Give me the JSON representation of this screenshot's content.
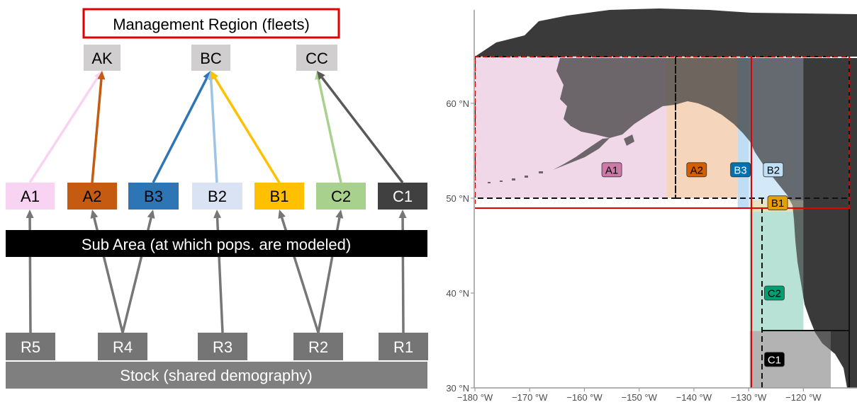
{
  "diagram": {
    "management_title": "Management Region (fleets)",
    "regions": [
      {
        "id": "AK",
        "label": "AK"
      },
      {
        "id": "BC",
        "label": "BC"
      },
      {
        "id": "CC",
        "label": "CC"
      }
    ],
    "subareas": [
      {
        "id": "A1",
        "label": "A1",
        "fill": "#f9d3f2",
        "text": "#000000",
        "region": "AK",
        "arrow": "#f9d3f2"
      },
      {
        "id": "A2",
        "label": "A2",
        "fill": "#c55a11",
        "text": "#000000",
        "region": "AK",
        "arrow": "#c55a11"
      },
      {
        "id": "B3",
        "label": "B3",
        "fill": "#2e75b6",
        "text": "#000000",
        "region": "BC",
        "arrow": "#2e75b6"
      },
      {
        "id": "B2",
        "label": "B2",
        "fill": "#dae3f3",
        "text": "#000000",
        "region": "BC",
        "arrow": "#9dc3e6"
      },
      {
        "id": "B1",
        "label": "B1",
        "fill": "#ffc000",
        "text": "#000000",
        "region": "BC",
        "arrow": "#ffc000"
      },
      {
        "id": "C2",
        "label": "C2",
        "fill": "#a9d18e",
        "text": "#000000",
        "region": "CC",
        "arrow": "#a9d18e"
      },
      {
        "id": "C1",
        "label": "C1",
        "fill": "#404040",
        "text": "#ffffff",
        "region": "CC",
        "arrow": "#595959"
      }
    ],
    "subarea_bar": "Sub Area (at which pops. are modeled)",
    "stocks": [
      {
        "id": "R5",
        "label": "R5",
        "feeds": [
          "A1"
        ]
      },
      {
        "id": "R4",
        "label": "R4",
        "feeds": [
          "A2",
          "B3"
        ]
      },
      {
        "id": "R3",
        "label": "R3",
        "feeds": [
          "B2"
        ]
      },
      {
        "id": "R2",
        "label": "R2",
        "feeds": [
          "B1",
          "C2"
        ]
      },
      {
        "id": "R1",
        "label": "R1",
        "feeds": [
          "C1"
        ]
      }
    ],
    "stock_bar": "Stock (shared demography)",
    "colors": {
      "region_box": "#d0cece",
      "title_border": "#e00000",
      "stock_box": "#757575",
      "stock_arrow": "#767676",
      "bar": "#000000"
    }
  },
  "map": {
    "x_ticks": [
      {
        "value": -180,
        "label": "−180 °W"
      },
      {
        "value": -170,
        "label": "−170 °W"
      },
      {
        "value": -160,
        "label": "−160 °W"
      },
      {
        "value": -150,
        "label": "−150 °W"
      },
      {
        "value": -140,
        "label": "−140 °W"
      },
      {
        "value": -130,
        "label": "−130 °W"
      },
      {
        "value": -120,
        "label": "−120 °W"
      }
    ],
    "y_ticks": [
      {
        "value": 30,
        "label": "30 °N"
      },
      {
        "value": 40,
        "label": "40 °N"
      },
      {
        "value": 50,
        "label": "50 °N"
      },
      {
        "value": 60,
        "label": "60 °N"
      }
    ],
    "lon_range": [
      -180,
      -115
    ],
    "lat_range": [
      30,
      70
    ],
    "areas": [
      {
        "id": "A1",
        "label": "A1",
        "lon": [
          -180,
          -145
        ],
        "lat": [
          50,
          65
        ],
        "fill": "#f1d9e9",
        "label_fill": "#cc79a7",
        "label_text": "#000000",
        "label_pos": [
          -155,
          53
        ]
      },
      {
        "id": "A2",
        "label": "A2",
        "lon": [
          -145,
          -132
        ],
        "lat": [
          50,
          65
        ],
        "fill": "#f5d6bd",
        "label_fill": "#d55e00",
        "label_text": "#000000",
        "label_pos": [
          -139.5,
          53
        ]
      },
      {
        "id": "B3",
        "label": "B3",
        "lon": [
          -132,
          -130
        ],
        "lat": [
          49,
          65
        ],
        "fill": "#bfdef4",
        "label_fill": "#0072b2",
        "label_text": "#ffffff",
        "label_pos": [
          -131.5,
          53
        ]
      },
      {
        "id": "B2",
        "label": "B2",
        "lon": [
          -130,
          -120
        ],
        "lat": [
          49,
          65
        ],
        "fill": "#d3e9fa",
        "label_fill": "#bfe0f7",
        "label_text": "#000000",
        "label_pos": [
          -125.5,
          53
        ]
      },
      {
        "id": "B1",
        "label": "B1",
        "lon": [
          -129.8,
          -120
        ],
        "lat": [
          48.6,
          49.8
        ],
        "fill": "#f3dfae",
        "label_fill": "#e69f00",
        "label_text": "#000000",
        "label_pos": [
          -124.7,
          49.5
        ]
      },
      {
        "id": "C2",
        "label": "C2",
        "lon": [
          -129.8,
          -120
        ],
        "lat": [
          36,
          48.6
        ],
        "fill": "#b9e2d6",
        "label_fill": "#009e73",
        "label_text": "#000000",
        "label_pos": [
          -125.3,
          40
        ]
      },
      {
        "id": "C1",
        "label": "C1",
        "lon": [
          -129.8,
          -115
        ],
        "lat": [
          30,
          36
        ],
        "fill": "#b3b3b3",
        "label_fill": "#000000",
        "label_text": "#ffffff",
        "label_pos": [
          -125.3,
          33
        ]
      }
    ],
    "red_lines": {
      "lon": -132.5,
      "lat": 49
    },
    "colors": {
      "land": "#3a3a3a",
      "axis": "#999999",
      "tick_text": "#4d4d4d",
      "red": "#e00000"
    }
  }
}
